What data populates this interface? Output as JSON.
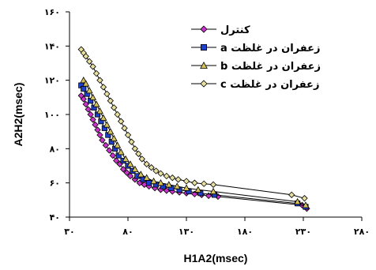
{
  "chart_data": {
    "type": "line",
    "xlabel": "H1A2(msec)",
    "ylabel": "A2H2(msec)",
    "xlim": [
      30,
      280
    ],
    "ylim": [
      40,
      160
    ],
    "x_ticks": [
      30,
      80,
      130,
      180,
      230,
      280
    ],
    "y_ticks": [
      40,
      60,
      80,
      100,
      120,
      140,
      160
    ],
    "x_tick_labels": [
      "۳۰",
      "۸۰",
      "۱۳۰",
      "۱۸۰",
      "۲۳۰",
      "۲۸۰"
    ],
    "y_tick_labels": [
      "۴۰",
      "۶۰",
      "۸۰",
      "۱۰۰",
      "۱۲۰",
      "۱۴۰",
      "۱۶۰"
    ],
    "legend_position": "top-right",
    "series": [
      {
        "name": "کنترل",
        "color": "#cc33cc",
        "marker": "diamond",
        "points": [
          [
            40,
            111
          ],
          [
            42,
            109
          ],
          [
            44,
            106
          ],
          [
            46,
            103
          ],
          [
            48,
            100
          ],
          [
            50,
            97
          ],
          [
            52,
            94
          ],
          [
            54,
            91
          ],
          [
            56,
            88
          ],
          [
            58,
            85
          ],
          [
            61,
            82
          ],
          [
            64,
            79
          ],
          [
            67,
            76
          ],
          [
            70,
            73
          ],
          [
            73,
            71
          ],
          [
            76,
            68
          ],
          [
            79,
            66
          ],
          [
            82,
            64
          ],
          [
            86,
            62
          ],
          [
            90,
            60
          ],
          [
            94,
            59
          ],
          [
            98,
            58
          ],
          [
            103,
            57
          ],
          [
            108,
            56
          ],
          [
            113,
            55.5
          ],
          [
            118,
            55
          ],
          [
            124,
            54.5
          ],
          [
            130,
            54
          ],
          [
            137,
            53.5
          ],
          [
            143,
            53
          ],
          [
            149,
            52.5
          ],
          [
            157,
            52
          ],
          [
            229,
            47
          ],
          [
            233,
            45
          ]
        ]
      },
      {
        "name": "زعفران در غلظت a",
        "color": "#1f3fcc",
        "marker": "square",
        "points": [
          [
            40,
            117
          ],
          [
            42,
            115
          ],
          [
            45,
            112
          ],
          [
            48,
            108
          ],
          [
            51,
            104
          ],
          [
            54,
            100
          ],
          [
            57,
            96
          ],
          [
            60,
            92
          ],
          [
            63,
            88
          ],
          [
            66,
            84
          ],
          [
            69,
            80
          ],
          [
            72,
            76
          ],
          [
            76,
            73
          ],
          [
            80,
            70
          ],
          [
            84,
            67
          ],
          [
            88,
            64
          ],
          [
            93,
            62
          ],
          [
            98,
            60
          ],
          [
            104,
            59
          ],
          [
            110,
            58
          ],
          [
            117,
            57
          ],
          [
            124,
            56
          ],
          [
            132,
            55
          ],
          [
            142,
            54
          ],
          [
            154,
            53
          ],
          [
            225,
            48
          ],
          [
            232,
            46
          ]
        ]
      },
      {
        "name": "زعفران در غلظت b",
        "color": "#d4c25a",
        "marker": "triangle",
        "points": [
          [
            42,
            120
          ],
          [
            44,
            118
          ],
          [
            47,
            114
          ],
          [
            50,
            110
          ],
          [
            53,
            106
          ],
          [
            56,
            102
          ],
          [
            59,
            98
          ],
          [
            62,
            94
          ],
          [
            65,
            90
          ],
          [
            68,
            86
          ],
          [
            71,
            82
          ],
          [
            74,
            78
          ],
          [
            78,
            74
          ],
          [
            82,
            71
          ],
          [
            86,
            68
          ],
          [
            91,
            65
          ],
          [
            96,
            63
          ],
          [
            102,
            61
          ],
          [
            108,
            60
          ],
          [
            115,
            59
          ],
          [
            122,
            58
          ],
          [
            130,
            57
          ],
          [
            140,
            56
          ],
          [
            153,
            55
          ],
          [
            225,
            49
          ],
          [
            232,
            47
          ]
        ]
      },
      {
        "name": "زعفران در غلظت c",
        "color": "#e8e0a0",
        "marker": "diamond",
        "points": [
          [
            40,
            138
          ],
          [
            42,
            136
          ],
          [
            44,
            134
          ],
          [
            47,
            131
          ],
          [
            50,
            128
          ],
          [
            53,
            124
          ],
          [
            56,
            120
          ],
          [
            59,
            116
          ],
          [
            62,
            112
          ],
          [
            65,
            108
          ],
          [
            68,
            104
          ],
          [
            71,
            100
          ],
          [
            74,
            96
          ],
          [
            77,
            92
          ],
          [
            80,
            88
          ],
          [
            83,
            84
          ],
          [
            86,
            80
          ],
          [
            89,
            77
          ],
          [
            92,
            74
          ],
          [
            96,
            71
          ],
          [
            100,
            69
          ],
          [
            104,
            67
          ],
          [
            108,
            65.5
          ],
          [
            113,
            64
          ],
          [
            118,
            63
          ],
          [
            123,
            62
          ],
          [
            130,
            61
          ],
          [
            137,
            60
          ],
          [
            145,
            59.5
          ],
          [
            153,
            59
          ],
          [
            220,
            53
          ],
          [
            231,
            51
          ]
        ]
      }
    ]
  }
}
